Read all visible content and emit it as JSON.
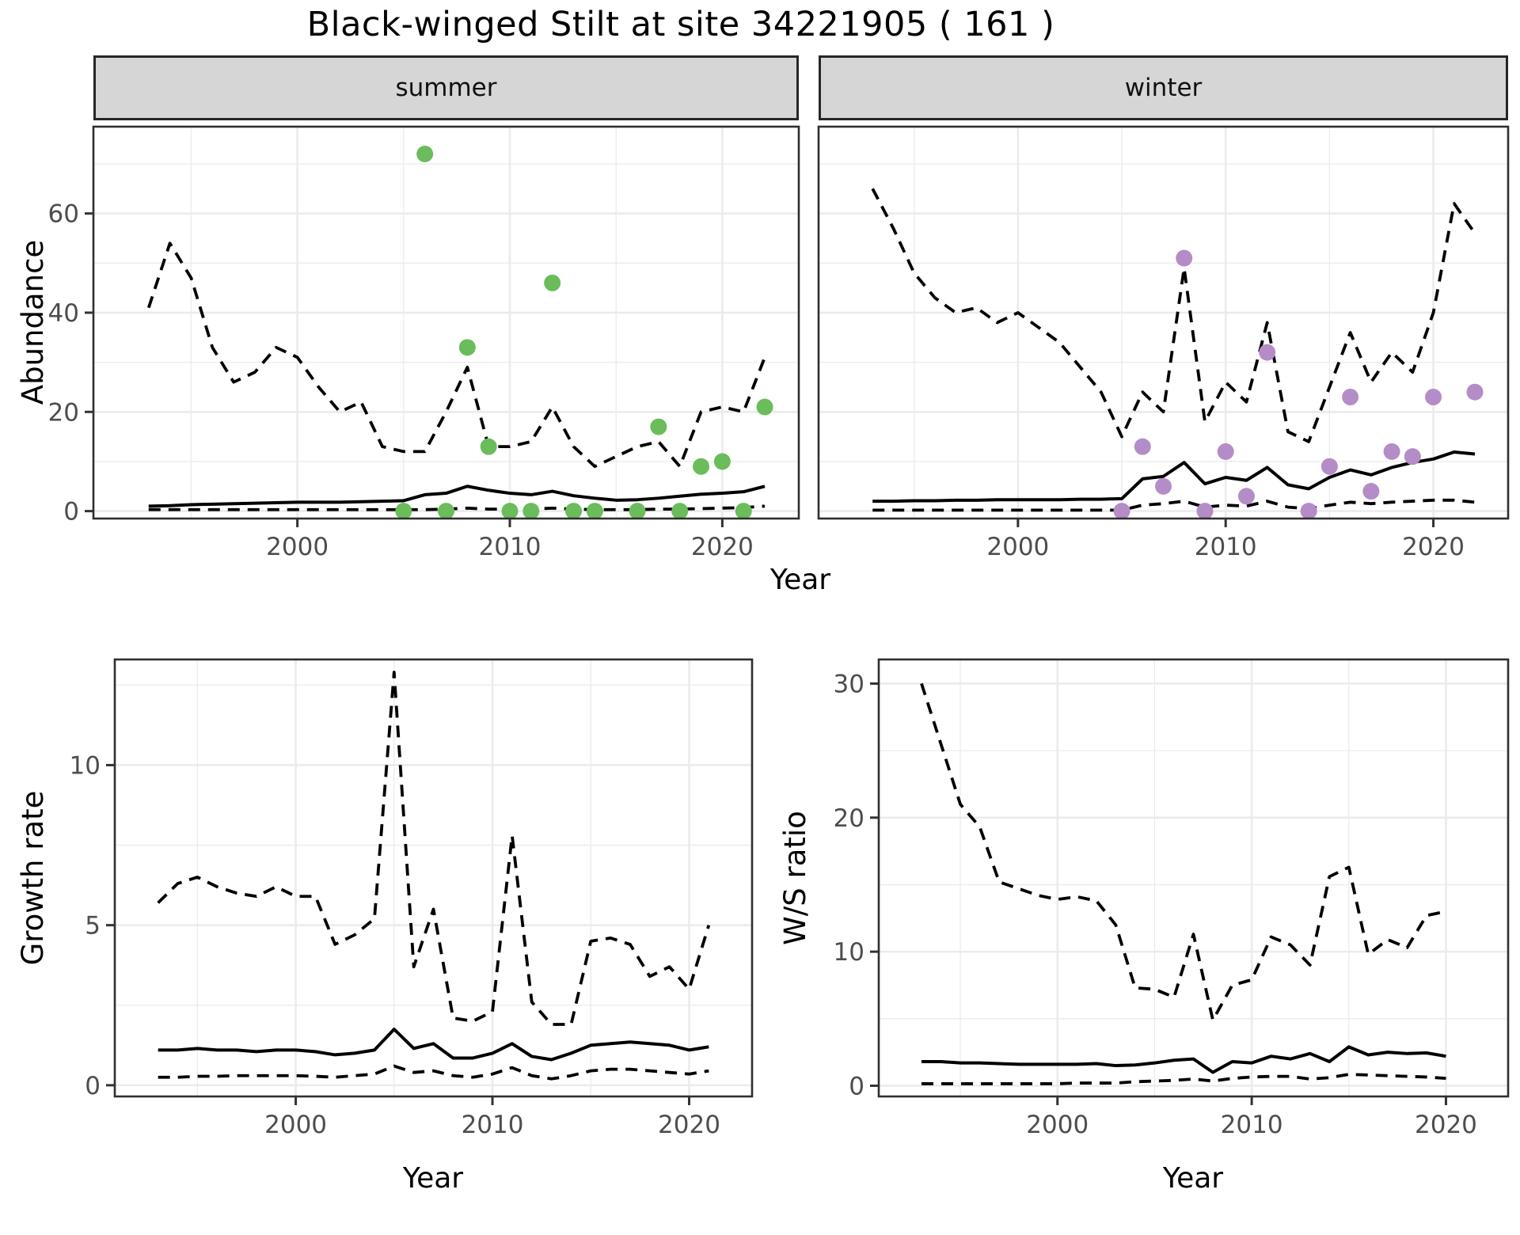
{
  "title": "Black-winged Stilt at site 34221905 ( 161 )",
  "facets": {
    "summer": "summer",
    "winter": "winter"
  },
  "axis_titles": {
    "x": "Year",
    "y_abundance": "Abundance",
    "y_growth": "Growth rate",
    "y_ws": "W/S ratio"
  },
  "colors": {
    "summer_point": "#6abd5a",
    "winter_point": "#b48cc8",
    "line": "#000000",
    "grid": "#ebebeb",
    "strip_bg": "#d6d6d6",
    "panel_border": "#2f2f2f",
    "axis_text": "#4d4d4d",
    "tick_mark": "#333333"
  },
  "chart_data": [
    {
      "type": "line",
      "facet": "summer",
      "title": "summer abundance with model mean and 95% CI",
      "xlabel": "Year",
      "ylabel": "Abundance",
      "x_domain": [
        1990.4,
        2023.6
      ],
      "y_domain": [
        -1.5,
        77.5
      ],
      "x_ticks": [
        2000,
        2010,
        2020
      ],
      "x_minor": [
        1995,
        2005,
        2015
      ],
      "y_ticks": [
        0,
        20,
        40,
        60
      ],
      "y_minor": [
        10,
        30,
        50,
        70
      ],
      "grid": true,
      "legend": "none",
      "years": [
        1993,
        1994,
        1995,
        1996,
        1997,
        1998,
        1999,
        2000,
        2001,
        2002,
        2003,
        2004,
        2005,
        2006,
        2007,
        2008,
        2009,
        2010,
        2011,
        2012,
        2013,
        2014,
        2015,
        2016,
        2017,
        2018,
        2019,
        2020,
        2021,
        2022
      ],
      "series": [
        {
          "name": "mean",
          "style": "solid",
          "values": [
            1.0,
            1.1,
            1.3,
            1.4,
            1.5,
            1.6,
            1.7,
            1.8,
            1.8,
            1.8,
            1.9,
            2.0,
            2.1,
            3.3,
            3.6,
            5.0,
            4.2,
            3.6,
            3.3,
            4.0,
            3.1,
            2.6,
            2.2,
            2.3,
            2.6,
            3.0,
            3.4,
            3.6,
            3.9,
            5.0
          ]
        },
        {
          "name": "upper_ci",
          "style": "dashed",
          "values": [
            41,
            54,
            47,
            33,
            26,
            28,
            33,
            31,
            25,
            20,
            22,
            13,
            12,
            12,
            20,
            29,
            13,
            13,
            14,
            21,
            13,
            9,
            11,
            13,
            14,
            9,
            20,
            21,
            20,
            31
          ]
        },
        {
          "name": "lower_ci",
          "style": "dashed",
          "values": [
            0.3,
            0.3,
            0.3,
            0.3,
            0.3,
            0.3,
            0.3,
            0.3,
            0.3,
            0.3,
            0.3,
            0.3,
            0.3,
            0.3,
            0.4,
            0.6,
            0.4,
            0.4,
            0.4,
            0.6,
            0.4,
            0.3,
            0.3,
            0.3,
            0.4,
            0.4,
            0.5,
            0.6,
            0.7,
            1.0
          ]
        }
      ],
      "points": {
        "name": "observed_counts",
        "color_key": "summer_point",
        "data": [
          [
            2005,
            0
          ],
          [
            2006,
            72
          ],
          [
            2007,
            0
          ],
          [
            2008,
            33
          ],
          [
            2009,
            13
          ],
          [
            2010,
            0
          ],
          [
            2011,
            0
          ],
          [
            2012,
            46
          ],
          [
            2013,
            0
          ],
          [
            2014,
            0
          ],
          [
            2016,
            0
          ],
          [
            2017,
            17
          ],
          [
            2018,
            0
          ],
          [
            2019,
            9
          ],
          [
            2020,
            10
          ],
          [
            2021,
            0
          ],
          [
            2022,
            21
          ]
        ]
      }
    },
    {
      "type": "line",
      "facet": "winter",
      "title": "winter abundance with model mean and 95% CI",
      "xlabel": "Year",
      "ylabel": "Abundance",
      "x_domain": [
        1990.4,
        2023.6
      ],
      "y_domain": [
        -1.5,
        77.5
      ],
      "x_ticks": [
        2000,
        2010,
        2020
      ],
      "x_minor": [
        1995,
        2005,
        2015
      ],
      "y_ticks": [
        0,
        20,
        40,
        60
      ],
      "y_minor": [
        10,
        30,
        50,
        70
      ],
      "grid": true,
      "legend": "none",
      "years": [
        1993,
        1994,
        1995,
        1996,
        1997,
        1998,
        1999,
        2000,
        2001,
        2002,
        2003,
        2004,
        2005,
        2006,
        2007,
        2008,
        2009,
        2010,
        2011,
        2012,
        2013,
        2014,
        2015,
        2016,
        2017,
        2018,
        2019,
        2020,
        2021,
        2022
      ],
      "series": [
        {
          "name": "mean",
          "style": "solid",
          "values": [
            2.0,
            2.0,
            2.1,
            2.1,
            2.2,
            2.2,
            2.3,
            2.3,
            2.3,
            2.3,
            2.4,
            2.4,
            2.5,
            6.5,
            7.0,
            9.8,
            5.5,
            6.8,
            6.2,
            8.8,
            5.3,
            4.5,
            6.8,
            8.3,
            7.3,
            8.8,
            9.8,
            10.5,
            11.9,
            11.5
          ]
        },
        {
          "name": "upper_ci",
          "style": "dashed",
          "values": [
            65,
            57,
            48,
            43,
            40,
            41,
            38,
            40,
            37,
            34,
            29,
            24,
            15,
            24,
            20,
            49,
            18,
            26,
            22,
            38,
            16,
            14,
            25,
            36,
            26,
            32,
            28,
            40,
            62,
            56
          ]
        },
        {
          "name": "lower_ci",
          "style": "dashed",
          "values": [
            0.2,
            0.2,
            0.2,
            0.2,
            0.2,
            0.2,
            0.2,
            0.2,
            0.2,
            0.2,
            0.2,
            0.2,
            0.2,
            1.2,
            1.5,
            2.0,
            0.8,
            1.2,
            1.0,
            2.0,
            0.8,
            0.5,
            1.2,
            1.8,
            1.5,
            1.8,
            2.0,
            2.2,
            2.2,
            1.8
          ]
        }
      ],
      "points": {
        "name": "observed_counts",
        "color_key": "winter_point",
        "data": [
          [
            2005,
            0
          ],
          [
            2006,
            13
          ],
          [
            2007,
            5
          ],
          [
            2008,
            51
          ],
          [
            2009,
            0
          ],
          [
            2010,
            12
          ],
          [
            2011,
            3
          ],
          [
            2012,
            32
          ],
          [
            2014,
            0
          ],
          [
            2015,
            9
          ],
          [
            2016,
            23
          ],
          [
            2017,
            4
          ],
          [
            2018,
            12
          ],
          [
            2019,
            11
          ],
          [
            2020,
            23
          ],
          [
            2022,
            24
          ]
        ]
      }
    },
    {
      "type": "line",
      "facet": null,
      "title": "growth rate with 95% CI",
      "xlabel": "Year",
      "ylabel": "Growth rate",
      "x_domain": [
        1990.8,
        2023.2
      ],
      "y_domain": [
        -0.35,
        13.3
      ],
      "x_ticks": [
        2000,
        2010,
        2020
      ],
      "x_minor": [
        1995,
        2005,
        2015
      ],
      "y_ticks": [
        0,
        5,
        10
      ],
      "y_minor": [
        2.5,
        7.5,
        12.5
      ],
      "grid": true,
      "legend": "none",
      "years": [
        1993,
        1994,
        1995,
        1996,
        1997,
        1998,
        1999,
        2000,
        2001,
        2002,
        2003,
        2004,
        2005,
        2006,
        2007,
        2008,
        2009,
        2010,
        2011,
        2012,
        2013,
        2014,
        2015,
        2016,
        2017,
        2018,
        2019,
        2020,
        2021
      ],
      "series": [
        {
          "name": "mean",
          "style": "solid",
          "values": [
            1.1,
            1.1,
            1.15,
            1.1,
            1.1,
            1.05,
            1.1,
            1.1,
            1.05,
            0.95,
            1.0,
            1.1,
            1.75,
            1.15,
            1.3,
            0.85,
            0.85,
            1.0,
            1.3,
            0.9,
            0.8,
            1.0,
            1.25,
            1.3,
            1.35,
            1.3,
            1.25,
            1.1,
            1.2
          ]
        },
        {
          "name": "upper_ci",
          "style": "dashed",
          "values": [
            5.7,
            6.3,
            6.5,
            6.2,
            6.0,
            5.9,
            6.2,
            5.9,
            5.9,
            4.4,
            4.7,
            5.2,
            12.9,
            3.7,
            5.5,
            2.1,
            2.0,
            2.3,
            7.8,
            2.6,
            1.9,
            1.9,
            4.5,
            4.6,
            4.4,
            3.4,
            3.7,
            3.0,
            5.0
          ]
        },
        {
          "name": "lower_ci",
          "style": "dashed",
          "values": [
            0.25,
            0.25,
            0.28,
            0.28,
            0.3,
            0.3,
            0.3,
            0.3,
            0.28,
            0.25,
            0.3,
            0.35,
            0.6,
            0.4,
            0.45,
            0.3,
            0.25,
            0.35,
            0.55,
            0.3,
            0.2,
            0.3,
            0.45,
            0.5,
            0.5,
            0.45,
            0.4,
            0.35,
            0.45
          ]
        }
      ],
      "points": null
    },
    {
      "type": "line",
      "facet": null,
      "title": "winter/summer ratio with 95% CI",
      "xlabel": "Year",
      "ylabel": "W/S ratio",
      "x_domain": [
        1990.8,
        2023.2
      ],
      "y_domain": [
        -0.8,
        31.8
      ],
      "x_ticks": [
        2000,
        2010,
        2020
      ],
      "x_minor": [
        1995,
        2005,
        2015
      ],
      "y_ticks": [
        0,
        10,
        20,
        30
      ],
      "y_minor": [
        5,
        15,
        25
      ],
      "grid": true,
      "legend": "none",
      "years": [
        1993,
        1994,
        1995,
        1996,
        1997,
        1998,
        1999,
        2000,
        2001,
        2002,
        2003,
        2004,
        2005,
        2006,
        2007,
        2008,
        2009,
        2010,
        2011,
        2012,
        2013,
        2014,
        2015,
        2016,
        2017,
        2018,
        2019,
        2020
      ],
      "series": [
        {
          "name": "mean",
          "style": "solid",
          "values": [
            1.8,
            1.8,
            1.7,
            1.7,
            1.65,
            1.6,
            1.6,
            1.6,
            1.6,
            1.65,
            1.5,
            1.55,
            1.7,
            1.9,
            2.0,
            1.0,
            1.8,
            1.7,
            2.2,
            2.0,
            2.4,
            1.8,
            2.9,
            2.3,
            2.5,
            2.4,
            2.45,
            2.2
          ]
        },
        {
          "name": "upper_ci",
          "style": "dashed",
          "values": [
            30,
            25.5,
            21,
            19.3,
            15.2,
            14.7,
            14.2,
            13.9,
            14.1,
            13.8,
            12.0,
            7.3,
            7.2,
            6.6,
            11.3,
            4.9,
            7.5,
            7.9,
            11.1,
            10.5,
            9.0,
            15.6,
            16.3,
            9.8,
            10.9,
            10.3,
            12.7,
            13.0
          ]
        },
        {
          "name": "lower_ci",
          "style": "dashed",
          "values": [
            0.15,
            0.15,
            0.15,
            0.15,
            0.15,
            0.15,
            0.15,
            0.15,
            0.2,
            0.2,
            0.2,
            0.3,
            0.35,
            0.4,
            0.5,
            0.35,
            0.55,
            0.65,
            0.7,
            0.7,
            0.5,
            0.6,
            0.85,
            0.8,
            0.75,
            0.7,
            0.65,
            0.55
          ]
        }
      ],
      "points": null
    }
  ]
}
